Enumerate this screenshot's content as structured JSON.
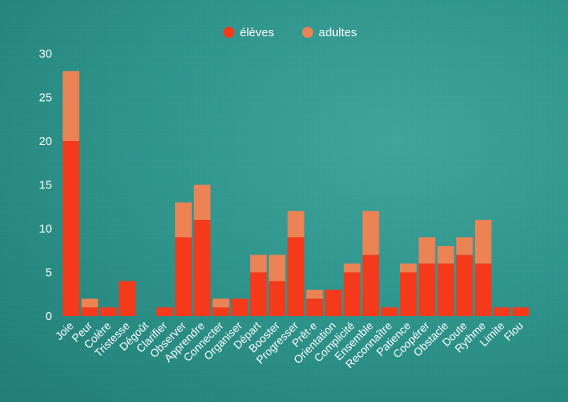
{
  "colors": {
    "eleves": "#f5391b",
    "adultes": "#ec8355",
    "text": "#ffffff"
  },
  "chart_data": {
    "type": "bar",
    "stacked": true,
    "categories": [
      "Joie",
      "Peur",
      "Colère",
      "Tristesse",
      "Dégoût",
      "Clarifier",
      "Observer",
      "Apprendre",
      "Connecter",
      "Organiser",
      "Départ",
      "Booster",
      "Progresser",
      "Prêt·e",
      "Orientation",
      "Complicité",
      "Ensemble",
      "Reconnaître",
      "Patience",
      "Coopérer",
      "Obstacle",
      "Doute",
      "Rythme",
      "Limite",
      "Flou"
    ],
    "series": [
      {
        "name": "élèves",
        "values": [
          20,
          1,
          1,
          4,
          0,
          1,
          9,
          11,
          1,
          2,
          5,
          4,
          9,
          2,
          3,
          5,
          7,
          1,
          5,
          6,
          6,
          7,
          6,
          1,
          1
        ]
      },
      {
        "name": "adultes",
        "values": [
          8,
          1,
          0,
          0,
          0,
          0,
          4,
          4,
          1,
          0,
          2,
          3,
          3,
          1,
          0,
          1,
          5,
          0,
          1,
          3,
          2,
          2,
          5,
          0,
          0
        ]
      }
    ],
    "ylim": [
      0,
      30
    ],
    "yticks": [
      0,
      5,
      10,
      15,
      20,
      25,
      30
    ],
    "legend_position": "top-center",
    "grid": false
  }
}
